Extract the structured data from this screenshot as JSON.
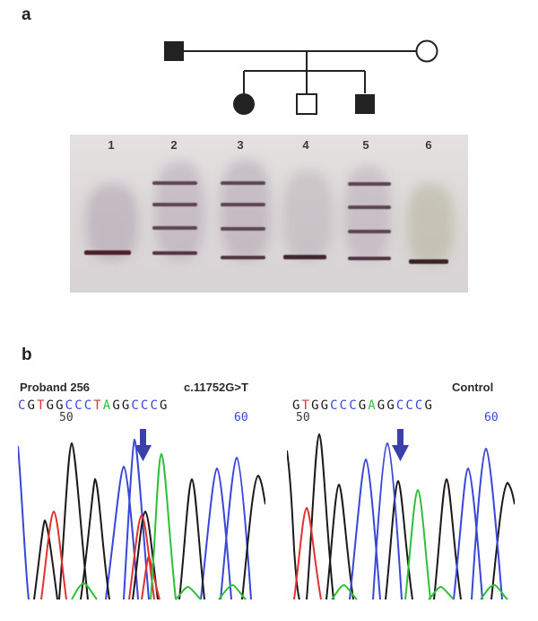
{
  "panel_a": {
    "label": "a",
    "lanes": [
      "1",
      "2",
      "3",
      "4",
      "5",
      "6"
    ]
  },
  "panel_b": {
    "label": "b",
    "left": {
      "title": "Proband 256",
      "mutation": "c.11752G>T",
      "sequence": [
        {
          "base": "C",
          "color": "#3a46d8"
        },
        {
          "base": "G",
          "color": "#1a1a1a"
        },
        {
          "base": "T",
          "color": "#e0322f"
        },
        {
          "base": "G",
          "color": "#1a1a1a"
        },
        {
          "base": "G",
          "color": "#1a1a1a"
        },
        {
          "base": "C",
          "color": "#3a46d8"
        },
        {
          "base": "C",
          "color": "#3a46d8"
        },
        {
          "base": "C",
          "color": "#3a46d8"
        },
        {
          "base": "T",
          "color": "#e0322f"
        },
        {
          "base": "A",
          "color": "#2fbf3b"
        },
        {
          "base": "G",
          "color": "#1a1a1a"
        },
        {
          "base": "G",
          "color": "#1a1a1a"
        },
        {
          "base": "C",
          "color": "#3a46d8"
        },
        {
          "base": "C",
          "color": "#3a46d8"
        },
        {
          "base": "C",
          "color": "#3a46d8"
        },
        {
          "base": "G",
          "color": "#1a1a1a"
        }
      ],
      "pos_50": "50",
      "pos_60": "60"
    },
    "right": {
      "title": "Control",
      "sequence": [
        {
          "base": "G",
          "color": "#1a1a1a"
        },
        {
          "base": "T",
          "color": "#e0322f"
        },
        {
          "base": "G",
          "color": "#1a1a1a"
        },
        {
          "base": "G",
          "color": "#1a1a1a"
        },
        {
          "base": "C",
          "color": "#3a46d8"
        },
        {
          "base": "C",
          "color": "#3a46d8"
        },
        {
          "base": "C",
          "color": "#3a46d8"
        },
        {
          "base": "G",
          "color": "#1a1a1a"
        },
        {
          "base": "A",
          "color": "#2fbf3b"
        },
        {
          "base": "G",
          "color": "#1a1a1a"
        },
        {
          "base": "G",
          "color": "#1a1a1a"
        },
        {
          "base": "C",
          "color": "#3a46d8"
        },
        {
          "base": "C",
          "color": "#3a46d8"
        },
        {
          "base": "C",
          "color": "#3a46d8"
        },
        {
          "base": "G",
          "color": "#1a1a1a"
        }
      ],
      "pos_50": "50",
      "pos_60": "60"
    }
  },
  "colors": {
    "A": "#2fbf3b",
    "C": "#3a46d8",
    "G": "#1a1a1a",
    "T": "#e0322f",
    "arrow": "#3b40a8"
  }
}
